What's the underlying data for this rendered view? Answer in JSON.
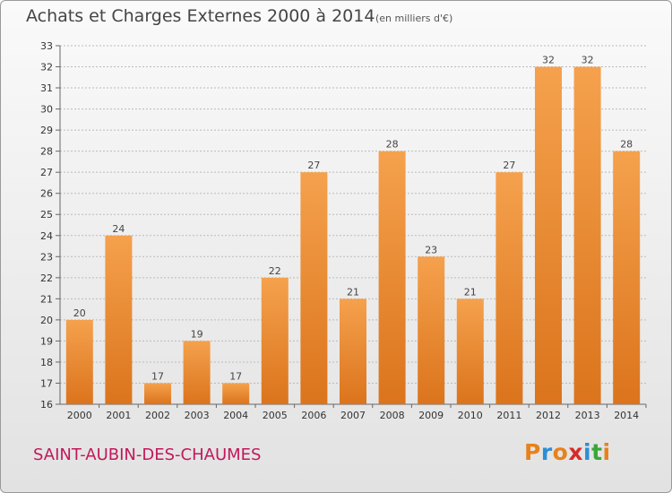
{
  "header": {
    "title": "Achats et Charges Externes 2000 à 2014",
    "subtitle": "(en milliers d'€)"
  },
  "footer": {
    "commune": "SAINT-AUBIN-DES-CHAUMES",
    "logo_text": "Proxiti",
    "logo_colors": [
      "#e8811c",
      "#2b8fd6",
      "#e8811c",
      "#d62b2b",
      "#2b8fd6",
      "#3aa63a",
      "#e8811c"
    ]
  },
  "colors": {
    "bar_top": "#f5a14d",
    "bar_bottom": "#db741c",
    "grid": "#bbbbbb",
    "axis_text": "#333333"
  },
  "chart_data": {
    "type": "bar",
    "categories": [
      "2000",
      "2001",
      "2002",
      "2003",
      "2004",
      "2005",
      "2006",
      "2007",
      "2008",
      "2009",
      "2010",
      "2011",
      "2012",
      "2013",
      "2014"
    ],
    "values": [
      20,
      24,
      17,
      19,
      17,
      22,
      27,
      21,
      28,
      23,
      21,
      27,
      32,
      32,
      28
    ],
    "ylim": [
      16,
      33
    ],
    "yticks": [
      16,
      17,
      18,
      19,
      20,
      21,
      22,
      23,
      24,
      25,
      26,
      27,
      28,
      29,
      30,
      31,
      32,
      33
    ],
    "grid": true,
    "data_labels": true
  }
}
